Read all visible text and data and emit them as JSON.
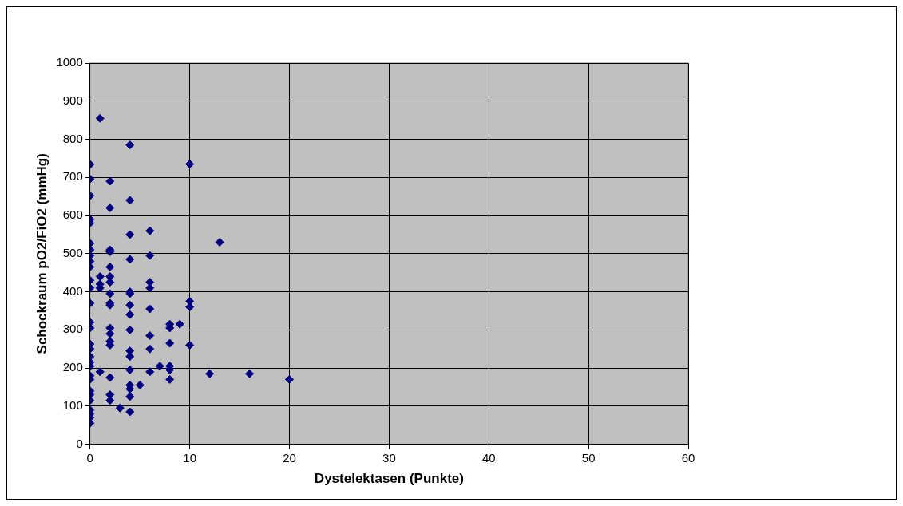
{
  "chart_data": {
    "type": "scatter",
    "xlabel": "Dystelektasen (Punkte)",
    "ylabel": "Schockraum pO2/FiO2 (mmHg)",
    "xlim": [
      0,
      60
    ],
    "xticks": [
      0,
      10,
      20,
      30,
      40,
      50,
      60
    ],
    "ylim": [
      0,
      1000
    ],
    "yticks": [
      0,
      100,
      200,
      300,
      400,
      500,
      600,
      700,
      800,
      900,
      1000
    ],
    "grid": true,
    "legend": false,
    "marker": "diamond",
    "series": [
      {
        "color": "#000080",
        "x": [
          0,
          0,
          0,
          0,
          0,
          0,
          0,
          0,
          0,
          0,
          0,
          0,
          0,
          0,
          0,
          0,
          0,
          0,
          0,
          0,
          0,
          0,
          0,
          0,
          0,
          0,
          0,
          0,
          0,
          1,
          1,
          1,
          1,
          1,
          2,
          2,
          2,
          2,
          2,
          2,
          2,
          2,
          2,
          2,
          2,
          2,
          2,
          2,
          2,
          2,
          2,
          3,
          4,
          4,
          4,
          4,
          4,
          4,
          4,
          4,
          4,
          4,
          4,
          4,
          4,
          4,
          4,
          4,
          5,
          6,
          6,
          6,
          6,
          6,
          6,
          6,
          6,
          7,
          8,
          8,
          8,
          8,
          8,
          8,
          9,
          10,
          10,
          10,
          10,
          12,
          13,
          16,
          20
        ],
        "values": [
          734,
          696,
          652,
          590,
          580,
          527,
          510,
          495,
          480,
          465,
          430,
          410,
          370,
          320,
          305,
          263,
          250,
          230,
          215,
          205,
          180,
          170,
          140,
          130,
          115,
          90,
          80,
          70,
          55,
          855,
          440,
          420,
          410,
          190,
          690,
          620,
          510,
          505,
          465,
          440,
          425,
          395,
          370,
          365,
          305,
          290,
          270,
          260,
          175,
          130,
          115,
          95,
          785,
          640,
          550,
          485,
          400,
          395,
          365,
          340,
          300,
          245,
          230,
          195,
          155,
          145,
          125,
          85,
          155,
          560,
          495,
          425,
          410,
          355,
          285,
          250,
          190,
          205,
          315,
          305,
          265,
          205,
          195,
          170,
          315,
          735,
          375,
          360,
          260,
          185,
          530,
          185,
          170
        ]
      }
    ]
  }
}
